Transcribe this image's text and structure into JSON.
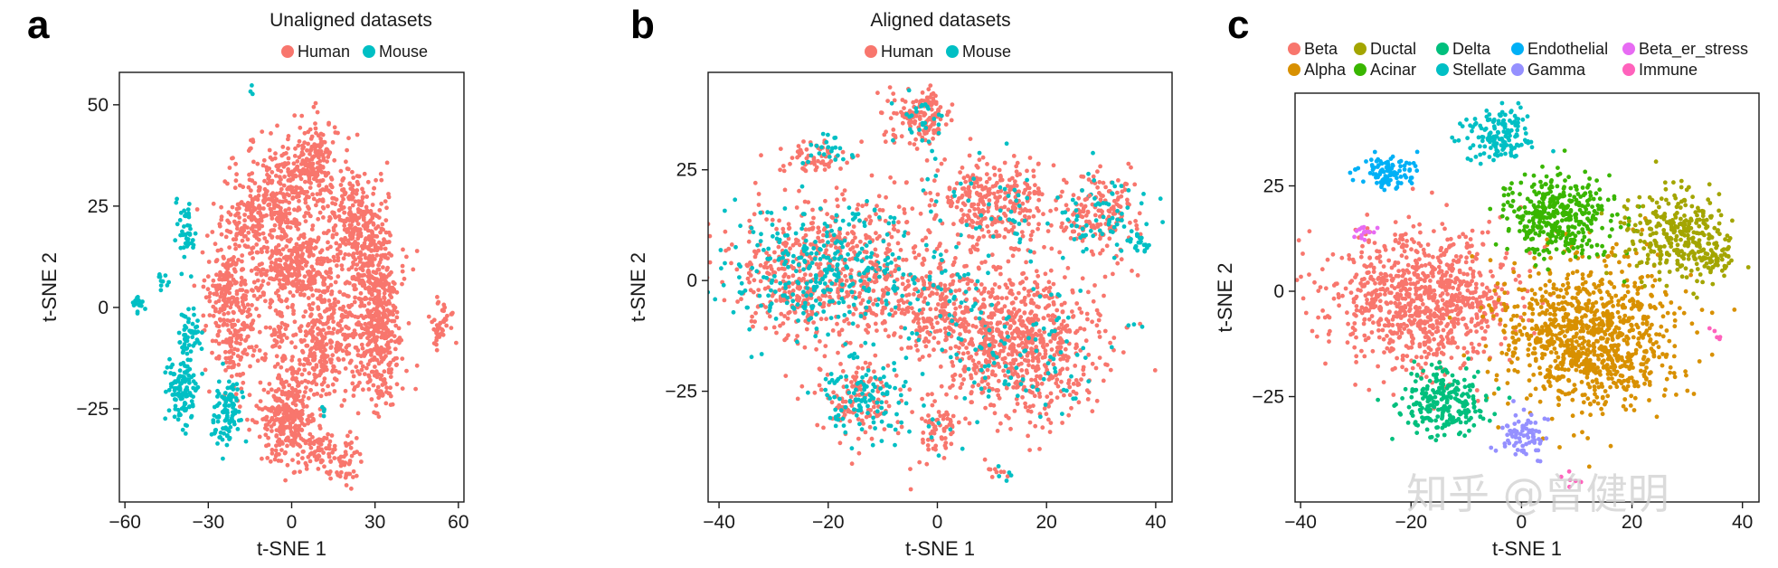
{
  "watermark": "知乎 @曾健明",
  "chart_data": [
    {
      "type": "scatter",
      "panel": "a",
      "title": "Unaligned datasets",
      "xlabel": "t-SNE 1",
      "ylabel": "t-SNE 2",
      "xlim": [
        -62,
        62
      ],
      "ylim": [
        -48,
        58
      ],
      "xticks": [
        -60,
        -30,
        0,
        30,
        60
      ],
      "xtick_labels": [
        "−60",
        "−30",
        "0",
        "30",
        "60"
      ],
      "yticks": [
        -25,
        0,
        25,
        50
      ],
      "ytick_labels": [
        "−25",
        "0",
        "25",
        "50"
      ],
      "legend": [
        {
          "label": "Human",
          "color": "#F8766D"
        },
        {
          "label": "Mouse",
          "color": "#00BFC4"
        }
      ],
      "clusters": [
        {
          "group": 0,
          "cx": -13,
          "cy": 22,
          "sx": 6,
          "sy": 6,
          "n": 220
        },
        {
          "group": 0,
          "cx": -3,
          "cy": 27,
          "sx": 4,
          "sy": 6,
          "n": 140
        },
        {
          "group": 0,
          "cx": 7,
          "cy": 35,
          "sx": 5,
          "sy": 6,
          "n": 220
        },
        {
          "group": 0,
          "cx": 5,
          "cy": 10,
          "sx": 5,
          "sy": 5,
          "n": 180
        },
        {
          "group": 0,
          "cx": -4,
          "cy": 7,
          "sx": 4,
          "sy": 4,
          "n": 100
        },
        {
          "group": 0,
          "cx": -24,
          "cy": 6,
          "sx": 4,
          "sy": 4,
          "n": 90
        },
        {
          "group": 0,
          "cx": -20,
          "cy": -3,
          "sx": 5,
          "sy": 9,
          "n": 230
        },
        {
          "group": 0,
          "cx": -5,
          "cy": -8,
          "sx": 2,
          "sy": 3,
          "n": 40
        },
        {
          "group": 0,
          "cx": 10,
          "cy": -9,
          "sx": 4,
          "sy": 7,
          "n": 200
        },
        {
          "group": 0,
          "cx": 20,
          "cy": -8,
          "sx": 5,
          "sy": 5,
          "n": 120
        },
        {
          "group": 0,
          "cx": 22,
          "cy": 20,
          "sx": 5,
          "sy": 8,
          "n": 280
        },
        {
          "group": 0,
          "cx": 30,
          "cy": 9,
          "sx": 4,
          "sy": 7,
          "n": 200
        },
        {
          "group": 0,
          "cx": 32,
          "cy": -8,
          "sx": 4,
          "sy": 9,
          "n": 300
        },
        {
          "group": 0,
          "cx": -2,
          "cy": -27,
          "sx": 5,
          "sy": 6,
          "n": 300
        },
        {
          "group": 0,
          "cx": 10,
          "cy": -36,
          "sx": 4,
          "sy": 3,
          "n": 70
        },
        {
          "group": 0,
          "cx": 20,
          "cy": -38,
          "sx": 2,
          "sy": 3,
          "n": 40
        },
        {
          "group": 0,
          "cx": 54,
          "cy": -3,
          "sx": 2,
          "sy": 3,
          "n": 45
        },
        {
          "group": 0,
          "cx": -15,
          "cy": 40,
          "sx": 1,
          "sy": 1,
          "n": 6
        },
        {
          "group": 0,
          "cx": -21,
          "cy": 37,
          "sx": 1,
          "sy": 1,
          "n": 4
        },
        {
          "group": 1,
          "cx": -38,
          "cy": 18,
          "sx": 2,
          "sy": 3,
          "n": 45
        },
        {
          "group": 1,
          "cx": -37,
          "cy": -7,
          "sx": 2,
          "sy": 3,
          "n": 60
        },
        {
          "group": 1,
          "cx": -40,
          "cy": -20,
          "sx": 3,
          "sy": 4,
          "n": 110
        },
        {
          "group": 1,
          "cx": -22,
          "cy": -24,
          "sx": 2,
          "sy": 4,
          "n": 75
        },
        {
          "group": 1,
          "cx": -26,
          "cy": -30,
          "sx": 2,
          "sy": 3,
          "n": 30
        },
        {
          "group": 1,
          "cx": -55,
          "cy": 1,
          "sx": 1,
          "sy": 1,
          "n": 20
        },
        {
          "group": 1,
          "cx": -47,
          "cy": 6,
          "sx": 1,
          "sy": 1,
          "n": 10
        },
        {
          "group": 1,
          "cx": -14,
          "cy": 54,
          "sx": 1,
          "sy": 1,
          "n": 3
        },
        {
          "group": 1,
          "cx": 11,
          "cy": -26,
          "sx": 1,
          "sy": 1,
          "n": 4
        }
      ]
    },
    {
      "type": "scatter",
      "panel": "b",
      "title": "Aligned datasets",
      "xlabel": "t-SNE 1",
      "ylabel": "t-SNE 2",
      "xlim": [
        -42,
        43
      ],
      "ylim": [
        -50,
        47
      ],
      "xticks": [
        -40,
        -20,
        0,
        20,
        40
      ],
      "xtick_labels": [
        "−40",
        "−20",
        "0",
        "20",
        "40"
      ],
      "yticks": [
        -25,
        0,
        25
      ],
      "ytick_labels": [
        "−25",
        "0",
        "25"
      ],
      "legend": [
        {
          "label": "Human",
          "color": "#F8766D"
        },
        {
          "label": "Mouse",
          "color": "#00BFC4"
        }
      ],
      "clusters": [
        {
          "group": 0,
          "cx": -3,
          "cy": 37,
          "sx": 3,
          "sy": 3,
          "n": 140
        },
        {
          "group": 1,
          "cx": -3,
          "cy": 37,
          "sx": 3,
          "sy": 3,
          "n": 30
        },
        {
          "group": 0,
          "cx": -23,
          "cy": 28,
          "sx": 3,
          "sy": 2,
          "n": 60
        },
        {
          "group": 1,
          "cx": -21,
          "cy": 29,
          "sx": 3,
          "sy": 2,
          "n": 25
        },
        {
          "group": 0,
          "cx": -20,
          "cy": 2,
          "sx": 9,
          "sy": 8,
          "n": 650
        },
        {
          "group": 1,
          "cx": -20,
          "cy": 2,
          "sx": 9,
          "sy": 8,
          "n": 330
        },
        {
          "group": 0,
          "cx": 10,
          "cy": 18,
          "sx": 6,
          "sy": 5,
          "n": 300
        },
        {
          "group": 1,
          "cx": 10,
          "cy": 18,
          "sx": 6,
          "sy": 5,
          "n": 40
        },
        {
          "group": 0,
          "cx": 30,
          "cy": 15,
          "sx": 4,
          "sy": 5,
          "n": 160
        },
        {
          "group": 1,
          "cx": 30,
          "cy": 15,
          "sx": 4,
          "sy": 5,
          "n": 70
        },
        {
          "group": 0,
          "cx": 15,
          "cy": -14,
          "sx": 7,
          "sy": 9,
          "n": 750
        },
        {
          "group": 1,
          "cx": 15,
          "cy": -14,
          "sx": 7,
          "sy": 9,
          "n": 100
        },
        {
          "group": 0,
          "cx": 0,
          "cy": -6,
          "sx": 5,
          "sy": 6,
          "n": 220
        },
        {
          "group": 1,
          "cx": 0,
          "cy": -6,
          "sx": 5,
          "sy": 6,
          "n": 45
        },
        {
          "group": 0,
          "cx": -14,
          "cy": -27,
          "sx": 4,
          "sy": 4,
          "n": 140
        },
        {
          "group": 1,
          "cx": -14,
          "cy": -27,
          "sx": 4,
          "sy": 4,
          "n": 110
        },
        {
          "group": 0,
          "cx": 0,
          "cy": -34,
          "sx": 2,
          "sy": 3,
          "n": 60
        },
        {
          "group": 1,
          "cx": 0,
          "cy": -34,
          "sx": 2,
          "sy": 3,
          "n": 8
        },
        {
          "group": 1,
          "cx": 37,
          "cy": 9,
          "sx": 1,
          "sy": 1,
          "n": 18
        },
        {
          "group": 0,
          "cx": 11,
          "cy": -44,
          "sx": 1,
          "sy": 1,
          "n": 8
        },
        {
          "group": 1,
          "cx": 12,
          "cy": -44,
          "sx": 1,
          "sy": 1,
          "n": 5
        },
        {
          "group": 0,
          "cx": 35,
          "cy": -10,
          "sx": 1,
          "sy": 1,
          "n": 3
        },
        {
          "group": 1,
          "cx": 35,
          "cy": -10,
          "sx": 1,
          "sy": 1,
          "n": 3
        }
      ]
    },
    {
      "type": "scatter",
      "panel": "c",
      "title": "",
      "xlabel": "t-SNE 1",
      "ylabel": "t-SNE 2",
      "xlim": [
        -41,
        43
      ],
      "ylim": [
        -50,
        47
      ],
      "xticks": [
        -40,
        -20,
        0,
        20,
        40
      ],
      "xtick_labels": [
        "−40",
        "−20",
        "0",
        "20",
        "40"
      ],
      "yticks": [
        -25,
        0,
        25
      ],
      "ytick_labels": [
        "−25",
        "0",
        "25"
      ],
      "legend": [
        {
          "label": "Beta",
          "color": "#F8766D"
        },
        {
          "label": "Ductal",
          "color": "#A3A500"
        },
        {
          "label": "Delta",
          "color": "#00BF7D"
        },
        {
          "label": "Endothelial",
          "color": "#00B0F6"
        },
        {
          "label": "Beta_er_stress",
          "color": "#E76BF3"
        },
        {
          "label": "Alpha",
          "color": "#D89000"
        },
        {
          "label": "Acinar",
          "color": "#39B600"
        },
        {
          "label": "Stellate",
          "color": "#00BFC4"
        },
        {
          "label": "Gamma",
          "color": "#9590FF"
        },
        {
          "label": "Immune",
          "color": "#FF62BC"
        }
      ],
      "clusters": [
        {
          "group": 0,
          "cx": -18,
          "cy": -2,
          "sx": 8,
          "sy": 8,
          "n": 900
        },
        {
          "group": 5,
          "cx": 12,
          "cy": -11,
          "sx": 8,
          "sy": 9,
          "n": 950
        },
        {
          "group": 6,
          "cx": 6,
          "cy": 18,
          "sx": 5,
          "sy": 5,
          "n": 380
        },
        {
          "group": 1,
          "cx": 28,
          "cy": 14,
          "sx": 5,
          "sy": 5,
          "n": 300
        },
        {
          "group": 1,
          "cx": 35,
          "cy": 8,
          "sx": 2,
          "sy": 2,
          "n": 50
        },
        {
          "group": 2,
          "cx": -14,
          "cy": -26,
          "sx": 4,
          "sy": 4,
          "n": 240
        },
        {
          "group": 7,
          "cx": -4,
          "cy": 37,
          "sx": 3,
          "sy": 3,
          "n": 150
        },
        {
          "group": 3,
          "cx": -24,
          "cy": 28,
          "sx": 3,
          "sy": 2,
          "n": 100
        },
        {
          "group": 8,
          "cx": 0,
          "cy": -34,
          "sx": 2,
          "sy": 3,
          "n": 75
        },
        {
          "group": 4,
          "cx": -28,
          "cy": 14,
          "sx": 1,
          "sy": 1,
          "n": 15
        },
        {
          "group": 9,
          "cx": 35,
          "cy": -10,
          "sx": 1,
          "sy": 1,
          "n": 5
        },
        {
          "group": 9,
          "cx": 9,
          "cy": -45,
          "sx": 1,
          "sy": 1,
          "n": 6
        }
      ]
    }
  ]
}
